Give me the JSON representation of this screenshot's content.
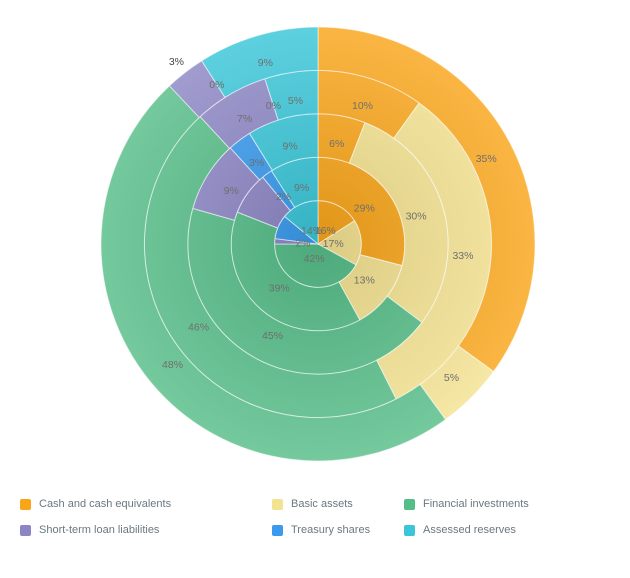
{
  "page": {
    "background": "#ffffff"
  },
  "chart_data": {
    "type": "pie",
    "variant": "multi-series concentric donut (5 rings, innermost to outermost)",
    "title": "",
    "categories": [
      "Cash and cash equivalents",
      "Basic assets",
      "Financial investments",
      "Short-term loan liabilities",
      "Treasury shares",
      "Assessed reserves"
    ],
    "colors": [
      "#F9A51A",
      "#F3E290",
      "#55BD88",
      "#8C86C5",
      "#3A9BEE",
      "#3AC6D8"
    ],
    "series": [
      {
        "name": "ring-1-innermost",
        "values": [
          16,
          17,
          42,
          2,
          9,
          14
        ]
      },
      {
        "name": "ring-2",
        "values": [
          29,
          13,
          39,
          8,
          2,
          9
        ]
      },
      {
        "name": "ring-3",
        "values": [
          6,
          30,
          45,
          9,
          3,
          9
        ]
      },
      {
        "name": "ring-4",
        "values": [
          10,
          33,
          46,
          7,
          0,
          5
        ]
      },
      {
        "name": "ring-5-outermost",
        "values": [
          35,
          5,
          48,
          3,
          0,
          9
        ]
      }
    ],
    "label_format": "{value}%",
    "label_color": "#6f6f6f",
    "legend_position": "bottom",
    "grid": false,
    "hidden_labels": [
      [
        0,
        4
      ],
      [
        1,
        3
      ]
    ]
  },
  "legend": {
    "items": [
      {
        "label": "Cash and cash equivalents",
        "color": "#F9A51A"
      },
      {
        "label": "Basic assets",
        "color": "#F3E290"
      },
      {
        "label": "Financial investments",
        "color": "#55BD88"
      },
      {
        "label": "Short-term loan liabilities",
        "color": "#8C86C5"
      },
      {
        "label": "Treasury shares",
        "color": "#3A9BEE"
      },
      {
        "label": "Assessed reserves",
        "color": "#3AC6D8"
      }
    ]
  }
}
